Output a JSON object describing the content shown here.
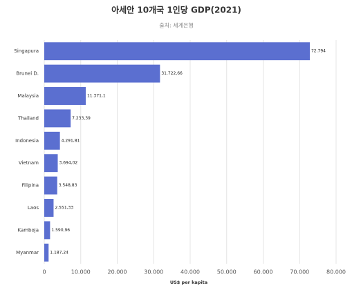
{
  "chart_data": {
    "type": "barh",
    "title": "아세안 10개국 1인당 GDP(2021)",
    "subtitle": "출처: 세계은행",
    "x_label": "US$ per kapita",
    "categories": [
      "Singapura",
      "Brunei D.",
      "Malaysia",
      "Thailand",
      "Indonesia",
      "Vietnam",
      "Filipina",
      "Laos",
      "Kamboja",
      "Myanmar"
    ],
    "values": [
      72794,
      31722.66,
      11371.1,
      7233.39,
      4291.81,
      3694.02,
      3548.83,
      2551.33,
      1590.96,
      1187.24
    ],
    "value_labels": [
      "72.794",
      "31.722,66",
      "11.371,1",
      "7.233,39",
      "4.291,81",
      "3.694,02",
      "3.548,83",
      "2.551,33",
      "1.590,96",
      "1.187,24"
    ],
    "color": "#5b6fd0",
    "xlim": [
      0,
      80000
    ],
    "xticks": [
      0,
      {
        "value": 10000,
        "label": "10.000"
      },
      {
        "value": 20000,
        "label": "20.000"
      },
      {
        "value": 30000,
        "label": "30.000"
      },
      {
        "value": 40000,
        "label": "40.000"
      },
      {
        "value": 50000,
        "label": "50.000"
      },
      {
        "value": 60000,
        "label": "60.000"
      },
      {
        "value": 70000,
        "label": "70.000"
      },
      {
        "value": 80000,
        "label": "80.000"
      }
    ],
    "grid": true
  }
}
